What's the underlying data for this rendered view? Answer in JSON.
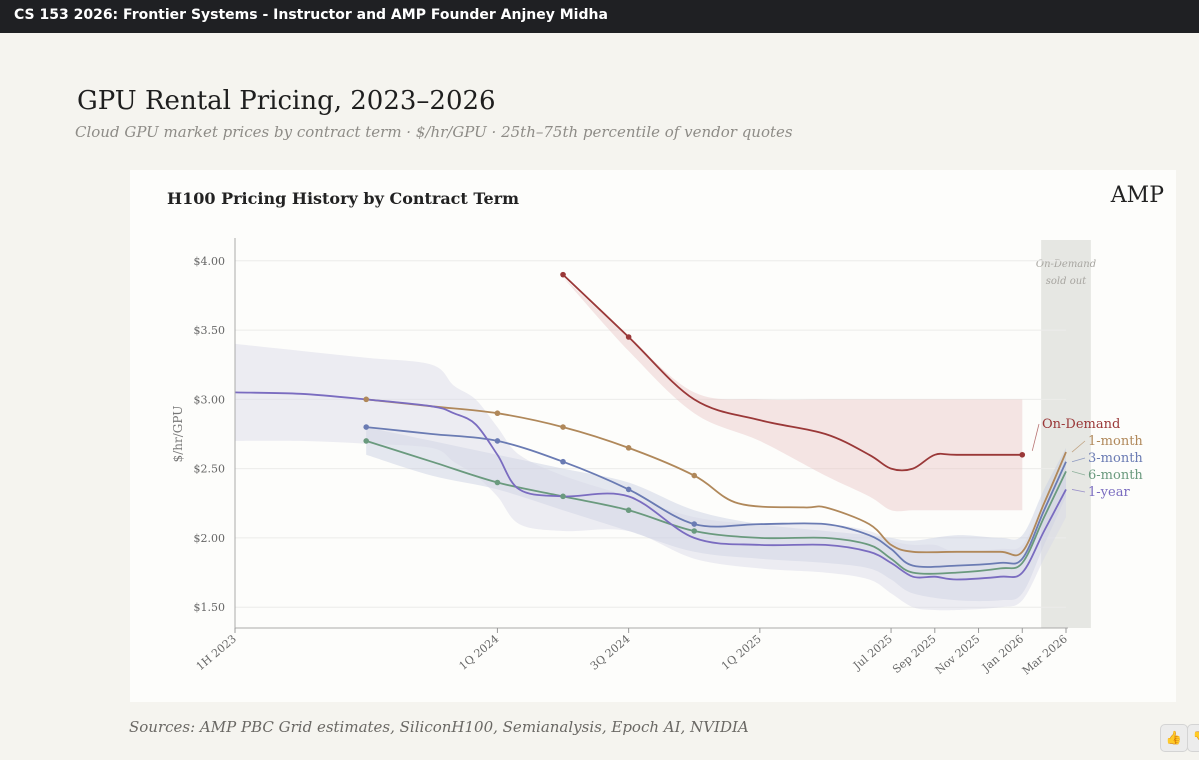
{
  "video": {
    "title": "CS 153 2026: Frontier Systems - Instructor and AMP Founder Anjney Midha"
  },
  "slide": {
    "title": "GPU Rental Pricing, 2023–2026",
    "subtitle": "Cloud GPU market prices by contract term · $/hr/GPU · 25th–75th percentile of vendor quotes",
    "sources": "Sources: AMP PBC Grid estimates, SiliconH100, Semianalysis, Epoch AI, NVIDIA"
  },
  "controls": {
    "like_icon": "thumbs-up-icon",
    "dislike_icon": "thumbs-down-icon"
  },
  "chart_data": {
    "type": "line",
    "title": "H100 Pricing History by Contract Term",
    "brand": "AMP",
    "ylabel": "$/hr/GPU",
    "xlabel": "",
    "ylim": [
      1.35,
      4.15
    ],
    "y_ticks": [
      {
        "value": 4.0,
        "label": "$4.00"
      },
      {
        "value": 3.5,
        "label": "$3.50"
      },
      {
        "value": 3.0,
        "label": "$3.00"
      },
      {
        "value": 2.5,
        "label": "$2.50"
      },
      {
        "value": 2.0,
        "label": "$2.00"
      },
      {
        "value": 1.5,
        "label": "$1.50"
      }
    ],
    "x_ticks": [
      {
        "t": 0,
        "label": "1H 2023"
      },
      {
        "t": 12,
        "label": "1Q 2024"
      },
      {
        "t": 18,
        "label": "3Q 2024"
      },
      {
        "t": 24,
        "label": "1Q 2025"
      },
      {
        "t": 30,
        "label": "Jul 2025"
      },
      {
        "t": 32,
        "label": "Sep 2025"
      },
      {
        "t": 34,
        "label": "Nov 2025"
      },
      {
        "t": 36,
        "label": "Jan 2026"
      },
      {
        "t": 38,
        "label": "Mar 2026"
      }
    ],
    "xlim": [
      0,
      38
    ],
    "annotation": {
      "line1": "On-Demand",
      "line2": "sold out",
      "t_start": 37,
      "t_end": 39
    },
    "series": [
      {
        "name": "On-Demand",
        "color": "#9a3838",
        "band_color": "#e9c6c6",
        "x": [
          15,
          18,
          21,
          24,
          27,
          29,
          30,
          31,
          32,
          33,
          36
        ],
        "values": [
          3.9,
          3.45,
          3.0,
          2.85,
          2.75,
          2.6,
          2.5,
          2.5,
          2.6,
          2.6,
          2.6
        ],
        "markers": [
          15,
          18,
          36
        ],
        "band_upper": [
          3.88,
          3.45,
          3.05,
          3.0,
          3.0,
          3.0,
          3.0,
          3.0,
          3.0,
          3.0,
          3.0
        ],
        "band_lower": [
          3.88,
          3.35,
          2.9,
          2.7,
          2.45,
          2.3,
          2.2,
          2.2,
          2.2,
          2.2,
          2.2
        ]
      },
      {
        "name": "1-month",
        "color": "#b0885a",
        "x": [
          6,
          9,
          12,
          15,
          18,
          21,
          23,
          26,
          27,
          29,
          30,
          31,
          33,
          35,
          36,
          37,
          38
        ],
        "values": [
          3.0,
          2.95,
          2.9,
          2.8,
          2.65,
          2.45,
          2.25,
          2.22,
          2.22,
          2.1,
          1.95,
          1.9,
          1.9,
          1.9,
          1.9,
          2.25,
          2.62
        ],
        "markers": [
          6,
          12,
          15,
          18,
          21
        ]
      },
      {
        "name": "3-month",
        "color": "#6a7bb3",
        "x": [
          6,
          9,
          12,
          15,
          18,
          21,
          24,
          27,
          29,
          30,
          31,
          33,
          35,
          36,
          37,
          38
        ],
        "values": [
          2.8,
          2.75,
          2.7,
          2.55,
          2.35,
          2.1,
          2.1,
          2.1,
          2.02,
          1.92,
          1.8,
          1.8,
          1.82,
          1.85,
          2.2,
          2.55
        ],
        "markers": [
          6,
          12,
          15,
          18,
          21
        ]
      },
      {
        "name": "6-month",
        "color": "#6a9a7e",
        "band_color": "#c5cbe0",
        "x": [
          6,
          9,
          12,
          15,
          18,
          21,
          24,
          27,
          29,
          30,
          31,
          33,
          35,
          36,
          37,
          38
        ],
        "values": [
          2.7,
          2.55,
          2.4,
          2.3,
          2.2,
          2.05,
          2.0,
          2.0,
          1.95,
          1.85,
          1.75,
          1.75,
          1.78,
          1.82,
          2.15,
          2.48
        ],
        "markers": [
          6,
          12,
          15,
          18,
          21
        ],
        "band_upper": [
          2.8,
          2.7,
          2.6,
          2.5,
          2.4,
          2.2,
          2.1,
          2.05,
          2.02,
          2.0,
          1.98,
          2.02,
          2.0,
          2.02,
          2.35,
          2.65
        ],
        "band_lower": [
          2.6,
          2.45,
          2.35,
          2.2,
          2.05,
          1.9,
          1.85,
          1.82,
          1.78,
          1.7,
          1.6,
          1.55,
          1.55,
          1.6,
          1.95,
          2.3
        ]
      },
      {
        "name": "1-year",
        "color": "#7a6cc0",
        "band_color": "#d8d8e6",
        "x": [
          0,
          3,
          6,
          9,
          10,
          11,
          12,
          13,
          15,
          18,
          21,
          24,
          27,
          29,
          30,
          31,
          32,
          33,
          35,
          36,
          37,
          38
        ],
        "values": [
          3.05,
          3.04,
          3.0,
          2.95,
          2.9,
          2.82,
          2.6,
          2.35,
          2.3,
          2.3,
          2.0,
          1.95,
          1.95,
          1.9,
          1.82,
          1.72,
          1.72,
          1.7,
          1.72,
          1.75,
          2.05,
          2.35
        ],
        "markers": [],
        "band_upper": [
          3.4,
          3.35,
          3.3,
          3.25,
          3.1,
          3.0,
          2.8,
          2.6,
          2.45,
          2.3,
          2.15,
          2.1,
          2.1,
          2.05,
          1.98,
          1.95,
          1.95,
          1.9,
          1.92,
          1.95,
          2.25,
          2.5
        ],
        "band_lower": [
          2.7,
          2.7,
          2.68,
          2.65,
          2.55,
          2.45,
          2.3,
          2.1,
          2.05,
          2.05,
          1.85,
          1.78,
          1.75,
          1.7,
          1.6,
          1.5,
          1.48,
          1.48,
          1.5,
          1.55,
          1.85,
          2.15
        ]
      }
    ],
    "legend": [
      {
        "label": "On-Demand",
        "color": "#9a3838"
      },
      {
        "label": "1-month",
        "color": "#b0885a"
      },
      {
        "label": "3-month",
        "color": "#6a7bb3"
      },
      {
        "label": "6-month",
        "color": "#6a9a7e"
      },
      {
        "label": "1-year",
        "color": "#7a6cc0"
      }
    ]
  }
}
